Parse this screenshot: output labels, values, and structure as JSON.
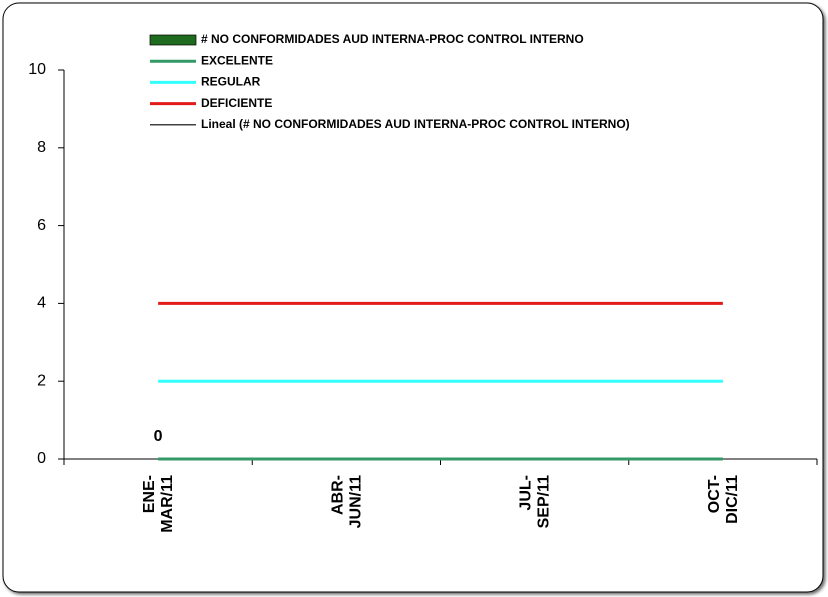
{
  "chart_data": {
    "type": "bar-line",
    "categories": [
      "ENE-MAR/11",
      "ABR-JUN/11",
      "JUL-SEP/11",
      "OCT-DIC/11"
    ],
    "series": [
      {
        "name": "# NO CONFORMIDADES AUD INTERNA-PROC CONTROL INTERNO",
        "type": "bar",
        "color": "#1f6b1f",
        "values": [
          0,
          null,
          null,
          null
        ]
      },
      {
        "name": "EXCELENTE",
        "type": "line",
        "color": "#339966",
        "values": [
          0,
          0,
          0,
          0
        ]
      },
      {
        "name": "REGULAR",
        "type": "line",
        "color": "#33ffff",
        "values": [
          2,
          2,
          2,
          2
        ]
      },
      {
        "name": "DEFICIENTE",
        "type": "line",
        "color": "#e31a1a",
        "values": [
          4,
          4,
          4,
          4
        ]
      },
      {
        "name": "Lineal (# NO CONFORMIDADES AUD INTERNA-PROC CONTROL INTERNO)",
        "type": "trend",
        "color": "#000000",
        "values": [
          null,
          null,
          null,
          null
        ]
      }
    ],
    "ylim": [
      0,
      10
    ],
    "yticks": [
      0,
      2,
      4,
      6,
      8,
      10
    ],
    "legend": "top"
  }
}
